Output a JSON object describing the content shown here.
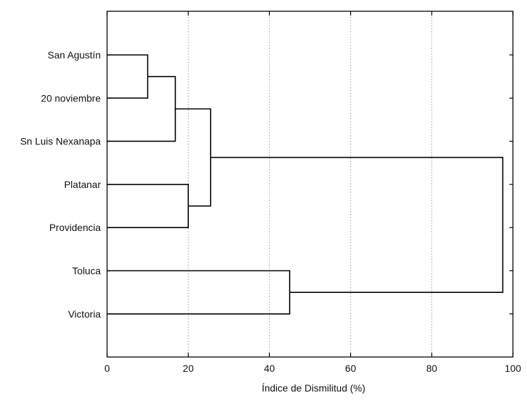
{
  "chart_data": {
    "type": "dendrogram",
    "orientation": "horizontal",
    "xlabel": "Índice de Dismilitud (%)",
    "xlim": [
      0,
      100
    ],
    "xticks": [
      0,
      20,
      40,
      60,
      80,
      100
    ],
    "grid": "vertical dotted",
    "leaves": [
      "San Agustín",
      "20 noviembre",
      "Sn Luis Nexanapa",
      "Platanar",
      "Providencia",
      "Toluca",
      "Victoria"
    ],
    "merges": [
      {
        "left": "San Agustín",
        "right": "20 noviembre",
        "height": 10
      },
      {
        "left": "cluster:San Agustín+20 noviembre",
        "right": "Sn Luis Nexanapa",
        "height": 16.8
      },
      {
        "left": "Platanar",
        "right": "Providencia",
        "height": 20
      },
      {
        "left": "cluster:San Agustín+20 noviembre+Sn Luis Nexanapa",
        "right": "cluster:Platanar+Providencia",
        "height": 25.5
      },
      {
        "left": "Toluca",
        "right": "Victoria",
        "height": 45
      },
      {
        "left": "cluster:top5",
        "right": "cluster:Toluca+Victoria",
        "height": 97.5
      }
    ]
  }
}
